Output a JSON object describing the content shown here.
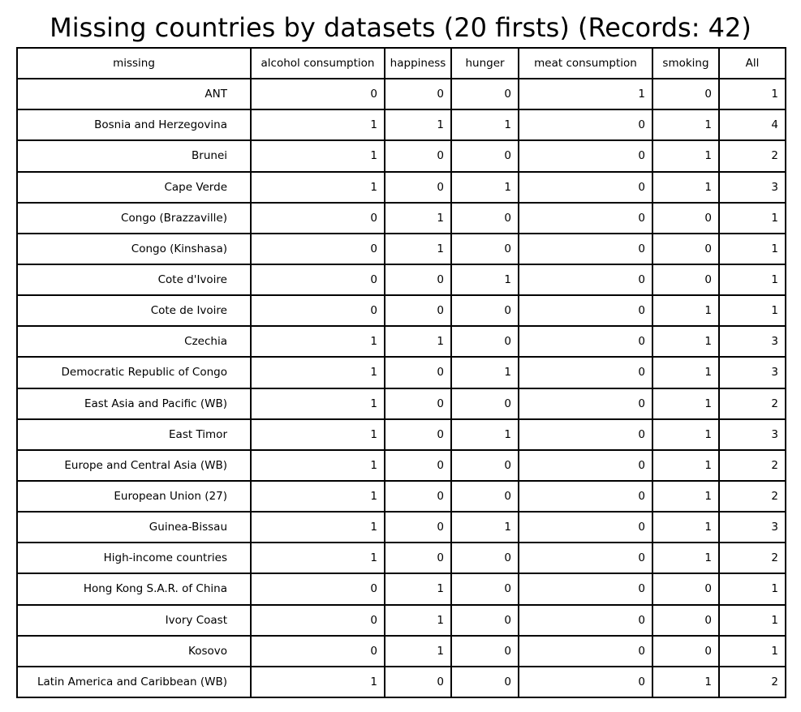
{
  "chart_data": {
    "type": "table",
    "title": "Missing countries by datasets (20 firsts) (Records: 42)",
    "columns": [
      "missing",
      "alcohol consumption",
      "happiness",
      "hunger",
      "meat consumption",
      "smoking",
      "All"
    ],
    "rows": [
      {
        "label": "ANT",
        "values": [
          0,
          0,
          0,
          1,
          0,
          1
        ]
      },
      {
        "label": "Bosnia and Herzegovina",
        "values": [
          1,
          1,
          1,
          0,
          1,
          4
        ]
      },
      {
        "label": "Brunei",
        "values": [
          1,
          0,
          0,
          0,
          1,
          2
        ]
      },
      {
        "label": "Cape Verde",
        "values": [
          1,
          0,
          1,
          0,
          1,
          3
        ]
      },
      {
        "label": "Congo (Brazzaville)",
        "values": [
          0,
          1,
          0,
          0,
          0,
          1
        ]
      },
      {
        "label": "Congo (Kinshasa)",
        "values": [
          0,
          1,
          0,
          0,
          0,
          1
        ]
      },
      {
        "label": "Cote d'Ivoire",
        "values": [
          0,
          0,
          1,
          0,
          0,
          1
        ]
      },
      {
        "label": "Cote de Ivoire",
        "values": [
          0,
          0,
          0,
          0,
          1,
          1
        ]
      },
      {
        "label": "Czechia",
        "values": [
          1,
          1,
          0,
          0,
          1,
          3
        ]
      },
      {
        "label": "Democratic Republic of Congo",
        "values": [
          1,
          0,
          1,
          0,
          1,
          3
        ]
      },
      {
        "label": "East Asia and Pacific (WB)",
        "values": [
          1,
          0,
          0,
          0,
          1,
          2
        ]
      },
      {
        "label": "East Timor",
        "values": [
          1,
          0,
          1,
          0,
          1,
          3
        ]
      },
      {
        "label": "Europe and Central Asia (WB)",
        "values": [
          1,
          0,
          0,
          0,
          1,
          2
        ]
      },
      {
        "label": "European Union (27)",
        "values": [
          1,
          0,
          0,
          0,
          1,
          2
        ]
      },
      {
        "label": "Guinea-Bissau",
        "values": [
          1,
          0,
          1,
          0,
          1,
          3
        ]
      },
      {
        "label": "High-income countries",
        "values": [
          1,
          0,
          0,
          0,
          1,
          2
        ]
      },
      {
        "label": "Hong Kong S.A.R. of China",
        "values": [
          0,
          1,
          0,
          0,
          0,
          1
        ]
      },
      {
        "label": "Ivory Coast",
        "values": [
          0,
          1,
          0,
          0,
          0,
          1
        ]
      },
      {
        "label": "Kosovo",
        "values": [
          0,
          1,
          0,
          0,
          0,
          1
        ]
      },
      {
        "label": "Latin America and Caribbean (WB)",
        "values": [
          1,
          0,
          0,
          0,
          1,
          2
        ]
      }
    ]
  }
}
